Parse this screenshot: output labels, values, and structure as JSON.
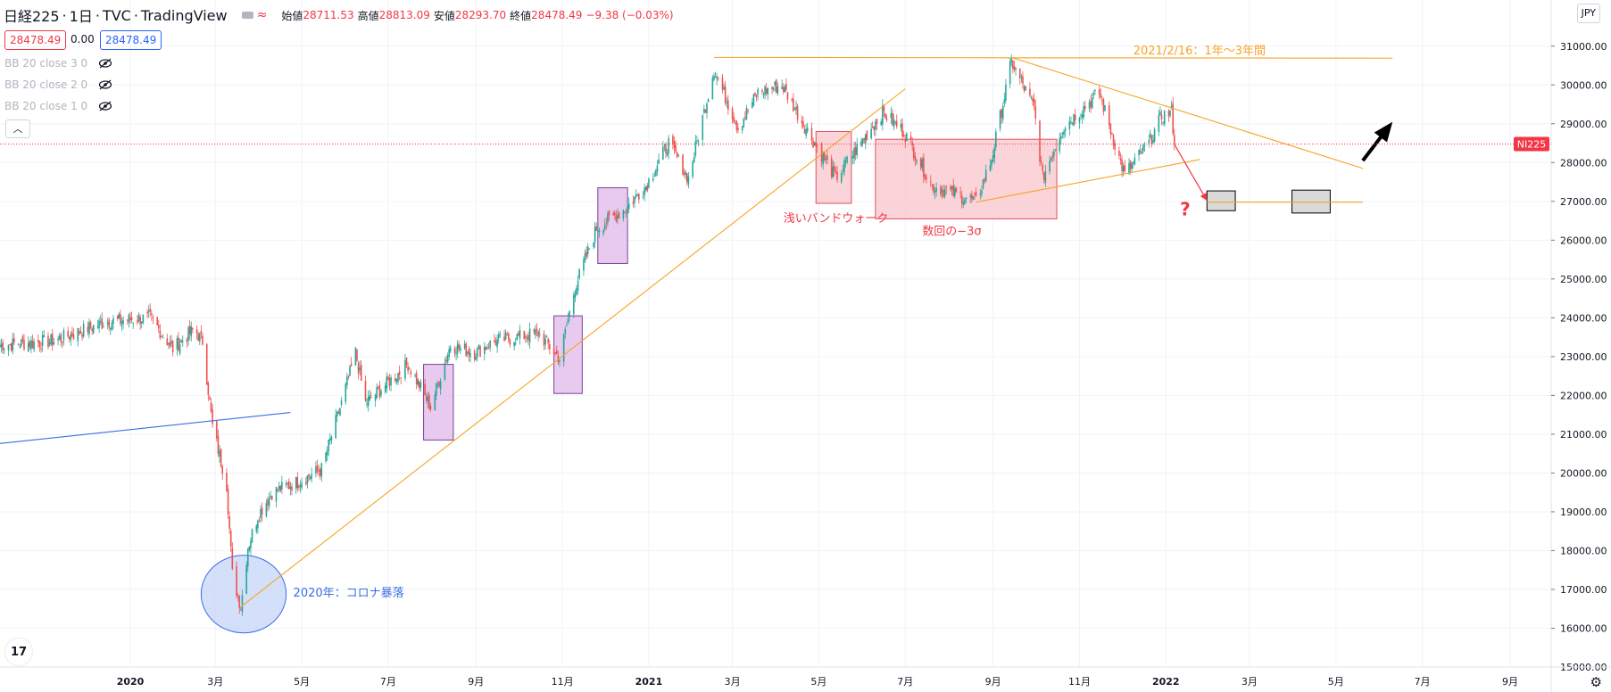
{
  "header": {
    "symbol": "日経225",
    "interval": "1日",
    "source": "TVC",
    "platform": "TradingView",
    "open_label": "始値",
    "open_value": "28711.53",
    "high_label": "高値",
    "high_value": "28813.09",
    "low_label": "安値",
    "low_value": "28293.70",
    "close_label": "終値",
    "close_value": "28478.49",
    "change_value": "−9.38 (−0.03%)",
    "bid": "28478.49",
    "spread": "0.00",
    "ask": "28478.49"
  },
  "indicators": [
    "BB 20 close 3 0",
    "BB 20 close 2 0",
    "BB 20 close 1 0"
  ],
  "currency": "JPY",
  "colors": {
    "up": "#26a69a",
    "down": "#ef5350",
    "orange": "#f7a325",
    "blue": "#3a6ee6",
    "accent": "#f23645"
  },
  "icons": {
    "hide": "eye-slash-icon",
    "collapse": "chevron-up-icon",
    "logo": "tradingview-logo-icon",
    "settings": "gear-icon"
  },
  "chart_data": {
    "type": "candlestick",
    "symbol_tag": "NI225",
    "last_price": 28478.49,
    "last_price_label": "28478.49",
    "ylim": [
      15000,
      31500
    ],
    "y_ticks": [
      15000,
      16000,
      17000,
      18000,
      19000,
      20000,
      21000,
      22000,
      23000,
      24000,
      25000,
      26000,
      27000,
      28000,
      29000,
      30000,
      31000
    ],
    "y_tick_labels": [
      "15000.00",
      "16000.00",
      "17000.00",
      "18000.00",
      "19000.00",
      "20000.00",
      "21000.00",
      "22000.00",
      "23000.00",
      "24000.00",
      "25000.00",
      "26000.00",
      "27000.00",
      "28000.00",
      "29000.00",
      "30000.00",
      "31000.00"
    ],
    "xlim": [
      "2019-10-01",
      "2022-09-30"
    ],
    "x_ticks": [
      {
        "date": "2020-01-01",
        "label": "2020",
        "bold": true
      },
      {
        "date": "2020-03-01",
        "label": "3月"
      },
      {
        "date": "2020-05-01",
        "label": "5月"
      },
      {
        "date": "2020-07-01",
        "label": "7月"
      },
      {
        "date": "2020-09-01",
        "label": "9月"
      },
      {
        "date": "2020-11-01",
        "label": "11月"
      },
      {
        "date": "2021-01-01",
        "label": "2021",
        "bold": true
      },
      {
        "date": "2021-03-01",
        "label": "3月"
      },
      {
        "date": "2021-05-01",
        "label": "5月"
      },
      {
        "date": "2021-07-01",
        "label": "7月"
      },
      {
        "date": "2021-09-01",
        "label": "9月"
      },
      {
        "date": "2021-11-01",
        "label": "11月"
      },
      {
        "date": "2022-01-01",
        "label": "2022",
        "bold": true
      },
      {
        "date": "2022-03-01",
        "label": "3月"
      },
      {
        "date": "2022-05-01",
        "label": "5月"
      },
      {
        "date": "2022-07-01",
        "label": "7月"
      },
      {
        "date": "2022-09-01",
        "label": "9月"
      }
    ],
    "price_path": [
      [
        "2019-10-01",
        23300
      ],
      [
        "2019-11-08",
        23400
      ],
      [
        "2019-12-15",
        23900
      ],
      [
        "2020-01-15",
        24000
      ],
      [
        "2020-01-31",
        23200
      ],
      [
        "2020-02-15",
        23700
      ],
      [
        "2020-02-21",
        23400
      ],
      [
        "2020-02-28",
        21200
      ],
      [
        "2020-03-09",
        19700
      ],
      [
        "2020-03-13",
        17400
      ],
      [
        "2020-03-19",
        16550
      ],
      [
        "2020-03-24",
        18100
      ],
      [
        "2020-03-31",
        18900
      ],
      [
        "2020-04-10",
        19500
      ],
      [
        "2020-04-30",
        19800
      ],
      [
        "2020-05-15",
        20100
      ],
      [
        "2020-05-29",
        21800
      ],
      [
        "2020-06-08",
        23100
      ],
      [
        "2020-06-15",
        21800
      ],
      [
        "2020-06-30",
        22300
      ],
      [
        "2020-07-15",
        22800
      ],
      [
        "2020-07-31",
        21700
      ],
      [
        "2020-08-14",
        23300
      ],
      [
        "2020-08-31",
        23100
      ],
      [
        "2020-09-15",
        23400
      ],
      [
        "2020-10-15",
        23600
      ],
      [
        "2020-10-30",
        22950
      ],
      [
        "2020-11-10",
        24800
      ],
      [
        "2020-11-25",
        26300
      ],
      [
        "2020-12-15",
        26800
      ],
      [
        "2020-12-30",
        27400
      ],
      [
        "2021-01-15",
        28500
      ],
      [
        "2021-01-29",
        27600
      ],
      [
        "2021-02-16",
        30400
      ],
      [
        "2021-03-05",
        28900
      ],
      [
        "2021-03-19",
        29800
      ],
      [
        "2021-04-05",
        30000
      ],
      [
        "2021-04-20",
        29000
      ],
      [
        "2021-05-13",
        27600
      ],
      [
        "2021-06-15",
        29300
      ],
      [
        "2021-06-30",
        28800
      ],
      [
        "2021-07-20",
        27400
      ],
      [
        "2021-08-20",
        27000
      ],
      [
        "2021-08-31",
        28100
      ],
      [
        "2021-09-14",
        30600
      ],
      [
        "2021-09-30",
        29400
      ],
      [
        "2021-10-06",
        27600
      ],
      [
        "2021-10-20",
        28900
      ],
      [
        "2021-11-15",
        29800
      ],
      [
        "2021-11-30",
        28000
      ],
      [
        "2021-12-03",
        27700
      ],
      [
        "2021-12-20",
        28500
      ],
      [
        "2021-12-29",
        29200
      ],
      [
        "2022-01-05",
        29300
      ],
      [
        "2022-01-07",
        28478
      ]
    ],
    "annotations": [
      {
        "text": "2021/2/16：1年〜3年間",
        "color": "#f7a325"
      },
      {
        "text": "浅いバンドウォーク",
        "color": "#f23645"
      },
      {
        "text": "数回の−3σ",
        "color": "#f23645"
      },
      {
        "text": "2020年：コロナ暴落",
        "color": "#3a6ee6"
      },
      {
        "text": "?",
        "color": "#f23645"
      }
    ],
    "drawings": [
      {
        "kind": "hline",
        "color": "#f7a325",
        "x": [
          "2021-02-16",
          "2022-06-10"
        ],
        "y": [
          30710,
          30690
        ]
      },
      {
        "kind": "trendline",
        "color": "#f7a325",
        "x": [
          "2020-03-19",
          "2021-07-01"
        ],
        "y": [
          16550,
          29900
        ]
      },
      {
        "kind": "trendline",
        "color": "#f7a325",
        "x": [
          "2021-09-14",
          "2022-05-20"
        ],
        "y": [
          30710,
          27850
        ]
      },
      {
        "kind": "trendline",
        "color": "#f7a325",
        "x": [
          "2021-08-20",
          "2022-01-25"
        ],
        "y": [
          26980,
          28080
        ]
      },
      {
        "kind": "hline",
        "color": "#f7a325",
        "x": [
          "2022-01-30",
          "2022-05-20"
        ],
        "y": [
          26980,
          26980
        ]
      },
      {
        "kind": "trendline",
        "color": "#3a6ee6",
        "x": [
          "2019-10-01",
          "2020-04-23"
        ],
        "y": [
          20760,
          21560
        ]
      },
      {
        "kind": "rect",
        "fill": "#e1b8ea",
        "stroke": "#7b3f9a",
        "x": [
          "2020-07-26",
          "2020-08-16"
        ],
        "y": [
          20850,
          22800
        ]
      },
      {
        "kind": "rect",
        "fill": "#e1b8ea",
        "stroke": "#7b3f9a",
        "x": [
          "2020-10-26",
          "2020-11-15"
        ],
        "y": [
          22050,
          24050
        ]
      },
      {
        "kind": "rect",
        "fill": "#e1b8ea",
        "stroke": "#7b3f9a",
        "x": [
          "2020-11-26",
          "2020-12-17"
        ],
        "y": [
          25400,
          27350
        ]
      },
      {
        "kind": "rect",
        "fill": "#f8c6cb",
        "stroke": "#e0505d",
        "x": [
          "2021-04-29",
          "2021-05-24"
        ],
        "y": [
          26950,
          28800
        ]
      },
      {
        "kind": "rect",
        "fill": "#f8c6cb",
        "stroke": "#e0505d",
        "x": [
          "2021-06-10",
          "2021-10-16"
        ],
        "y": [
          26550,
          28600
        ]
      },
      {
        "kind": "rect",
        "fill": "#d9d9d9",
        "stroke": "#000000",
        "x": [
          "2022-01-30",
          "2022-02-19"
        ],
        "y": [
          26760,
          27270
        ]
      },
      {
        "kind": "rect",
        "fill": "#d9d9d9",
        "stroke": "#000000",
        "x": [
          "2022-03-31",
          "2022-04-27"
        ],
        "y": [
          26700,
          27290
        ]
      },
      {
        "kind": "ellipse",
        "fill": "#c9d7f8",
        "stroke": "#3a6ee6",
        "x": [
          "2020-02-20",
          "2020-04-20"
        ],
        "y": [
          15880,
          17880
        ]
      },
      {
        "kind": "arrow",
        "color": "#f23645",
        "x": [
          "2022-01-07",
          "2022-01-30"
        ],
        "y": [
          28470,
          27020
        ]
      },
      {
        "kind": "arrow",
        "color": "#000000",
        "x": [
          "2022-05-20",
          "2022-06-10"
        ],
        "y": [
          28050,
          29050
        ]
      }
    ]
  }
}
